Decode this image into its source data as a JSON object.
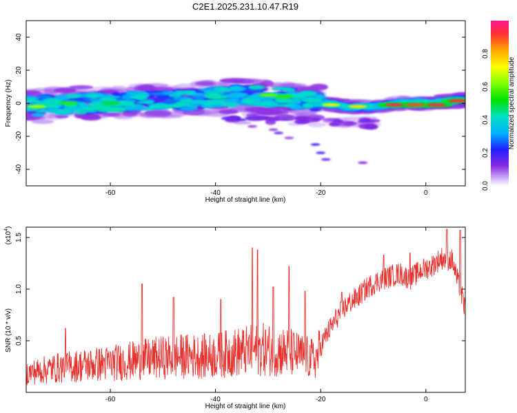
{
  "title": "C2E1.2025.231.10.47.R19",
  "chart_data": [
    {
      "type": "heatmap",
      "title": "C2E1.2025.231.10.47.R19",
      "xlabel": "Height of straight line (km)",
      "ylabel": "Frequency (Hz)",
      "xlim": [
        -76,
        7.5
      ],
      "ylim": [
        -50,
        50
      ],
      "x_ticks": [
        -60,
        -40,
        -20,
        0
      ],
      "y_ticks": [
        -40,
        -20,
        0,
        20,
        40
      ],
      "grid": false,
      "ridge": [
        [
          -76,
          -2
        ],
        [
          -65,
          0
        ],
        [
          -55,
          1
        ],
        [
          -45,
          2
        ],
        [
          -35,
          5
        ],
        [
          -25,
          3
        ],
        [
          -20,
          0
        ],
        [
          -15,
          -2
        ],
        [
          -10,
          -2
        ],
        [
          -5,
          0
        ],
        [
          0,
          0
        ],
        [
          5,
          1.5
        ],
        [
          7.5,
          2
        ]
      ],
      "hot_spots": [
        [
          -74,
          -2,
          0.65
        ],
        [
          -68,
          0,
          0.55
        ],
        [
          -60,
          0,
          0.5
        ],
        [
          -30,
          5,
          0.6
        ],
        [
          -27,
          4,
          0.55
        ],
        [
          -18,
          -1,
          0.7
        ],
        [
          -13,
          -2,
          0.75
        ],
        [
          -6,
          -1,
          0.95
        ],
        [
          -2,
          -1,
          0.9
        ],
        [
          2,
          -1,
          0.95
        ],
        [
          6,
          1.5,
          0.92
        ]
      ],
      "colorbar": {
        "label": "Normalized spectral amplitude",
        "range": [
          0,
          1
        ],
        "ticks": [
          0.0,
          0.2,
          0.4,
          0.6,
          0.8
        ]
      }
    },
    {
      "type": "line",
      "xlabel": "Height of straight line (km)",
      "ylabel": "SNR (10 * v/v)",
      "y_scale_label": "(x10",
      "y_scale_exponent": "4",
      "xlim": [
        -76,
        7.5
      ],
      "ylim": [
        0,
        1.6
      ],
      "x_ticks": [
        -60,
        -40,
        -20,
        0
      ],
      "y_ticks": [
        0.5,
        1.0,
        1.5
      ],
      "y_tick_labels": [
        "0.5",
        "1.0",
        "1.5"
      ],
      "grid": false,
      "series": [
        {
          "color": "#e8302c",
          "x": [
            -76,
            -71,
            -66,
            -61,
            -56,
            -51,
            -46,
            -41,
            -36,
            -31,
            -26,
            -21,
            -19,
            -17,
            -15,
            -13,
            -11,
            -9,
            -7,
            -5,
            -3,
            -1,
            1,
            3,
            5,
            7.5
          ],
          "y": [
            0.2,
            0.25,
            0.28,
            0.3,
            0.33,
            0.36,
            0.38,
            0.38,
            0.42,
            0.45,
            0.42,
            0.34,
            0.55,
            0.72,
            0.85,
            0.92,
            1.02,
            1.08,
            1.12,
            1.15,
            1.1,
            1.18,
            1.22,
            1.3,
            1.28,
            0.8
          ],
          "peaks": [
            [
              -68.5,
              0.62
            ],
            [
              -54,
              1.05
            ],
            [
              -48,
              0.92
            ],
            [
              -39,
              0.9
            ],
            [
              -33,
              1.4
            ],
            [
              -32,
              1.38
            ],
            [
              -29,
              1.02
            ],
            [
              -26,
              1.22
            ],
            [
              -23,
              0.98
            ],
            [
              -16,
              0.97
            ],
            [
              -8,
              1.33
            ],
            [
              -3,
              1.35
            ],
            [
              4,
              1.58
            ],
            [
              6.5,
              1.57
            ]
          ]
        }
      ]
    }
  ],
  "icons": {
    "colorbar": "rainbow-gradient-bar"
  }
}
